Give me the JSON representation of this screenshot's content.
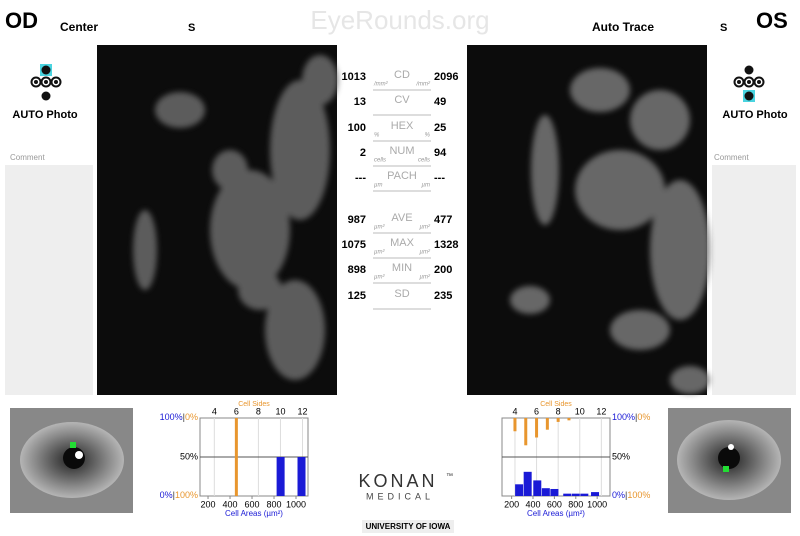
{
  "header": {
    "left_eye": "OD",
    "left_mode": "Center",
    "left_sup": "S",
    "watermark": "EyeRounds.org",
    "right_mode": "Auto Trace",
    "right_sup": "S",
    "right_eye": "OS"
  },
  "left_panel": {
    "photo": "AUTO Photo",
    "comment": "Comment"
  },
  "right_panel": {
    "photo": "AUTO Photo",
    "comment": "Comment"
  },
  "metrics": [
    {
      "left": 1013,
      "left_unit": "/mm²",
      "label": "CD",
      "right_unit": "/mm²",
      "right": 2096
    },
    {
      "left": 13,
      "label": "CV",
      "right": 49
    },
    {
      "left": 100,
      "left_unit": "%",
      "label": "HEX",
      "right_unit": "%",
      "right": 25
    },
    {
      "left": 2,
      "left_unit": "cells",
      "label": "NUM",
      "right_unit": "cells",
      "right": 94
    },
    {
      "left": "---",
      "left_unit": "µm",
      "label": "PACH",
      "right_unit": "µm",
      "right": "---"
    },
    {
      "left": 987,
      "left_unit": "µm²",
      "label": "AVE",
      "right_unit": "µm²",
      "right": 477
    },
    {
      "left": 1075,
      "left_unit": "µm²",
      "label": "MAX",
      "right_unit": "µm²",
      "right": 1328
    },
    {
      "left": 898,
      "left_unit": "µm²",
      "label": "MIN",
      "right_unit": "µm²",
      "right": 200
    },
    {
      "left": 125,
      "label": "SD",
      "right": 235
    }
  ],
  "histograms": [
    {
      "sides_label": "Cell Sides",
      "area_label": "Cell Areas (µm²)",
      "separator": "|",
      "sides_lim": [
        2.7,
        12.5
      ],
      "sides_ticks": [
        4,
        6,
        8,
        10,
        12
      ],
      "area_lim": [
        127,
        1109
      ],
      "area_ticks": [
        200,
        400,
        600,
        800,
        1000
      ],
      "ylim": [
        0,
        100
      ],
      "yticks": [
        {
          "value": 100,
          "label": "100%"
        },
        {
          "value": 0,
          "label": "0%"
        }
      ],
      "y2ticks": [
        {
          "value": 0,
          "label": "0%"
        },
        {
          "value": 100,
          "label": "100%"
        }
      ],
      "midline": {
        "value": 50,
        "label": "50%"
      },
      "sides": [
        6
      ],
      "sides_values": [
        100
      ],
      "areas": [
        860,
        1050
      ],
      "area_values": [
        50,
        50
      ],
      "sides_color": "#e8962e",
      "area_color": "#1a1ad6"
    },
    {
      "sides_label": "Cell Sides",
      "area_label": "Cell Areas (µm²)",
      "separator": "|",
      "sides_lim": [
        2.8,
        12.8
      ],
      "sides_ticks": [
        4,
        6,
        8,
        10,
        12
      ],
      "area_lim": [
        110,
        1120
      ],
      "area_ticks": [
        200,
        400,
        600,
        800,
        1000
      ],
      "ylim": [
        0,
        100
      ],
      "yticks": [
        {
          "value": 100,
          "label": "100%"
        },
        {
          "value": 0,
          "label": "0%"
        }
      ],
      "y2ticks": [
        {
          "value": 0,
          "label": "0%"
        },
        {
          "value": 100,
          "label": "100%"
        }
      ],
      "midline": {
        "value": 50,
        "label": "50%"
      },
      "sides": [
        4,
        5,
        6,
        7,
        8,
        9
      ],
      "sides_values": [
        17,
        35,
        25,
        15,
        5,
        3
      ],
      "areas": [
        270,
        350,
        440,
        520,
        600,
        720,
        800,
        880,
        980
      ],
      "area_values": [
        15,
        31,
        20,
        10,
        9,
        3,
        3,
        3,
        5
      ],
      "sides_color": "#e8962e",
      "area_color": "#1a1ad6"
    }
  ],
  "logo": {
    "brand": "KONAN",
    "tm": "™",
    "sub": "MEDICAL",
    "university": "UNIVERSITY OF IOWA"
  }
}
